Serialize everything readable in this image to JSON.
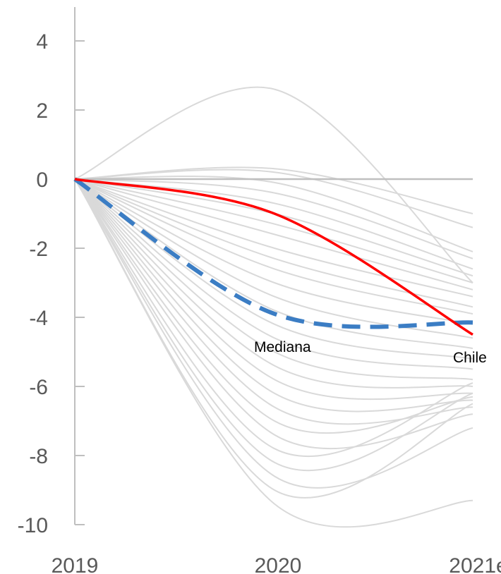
{
  "chart_data": {
    "type": "line",
    "title": "",
    "xlabel": "",
    "ylabel": "",
    "categories": [
      "2019",
      "2020",
      "2021e"
    ],
    "ylim": [
      -10,
      4
    ],
    "yticks": [
      4,
      2,
      0,
      -2,
      -4,
      -6,
      -8,
      -10
    ],
    "grid": false,
    "legend": "none",
    "colors": {
      "background_series": "#d9d9d9",
      "zero_line": "#bfbfbf",
      "axis": "#bfbfbf",
      "chile": "#ff0000",
      "mediana": "#3b7dc4"
    },
    "background_series": [
      [
        0,
        2.6,
        -3.0
      ],
      [
        0,
        0.3,
        -1.0
      ],
      [
        0,
        0.2,
        -1.4
      ],
      [
        0,
        -0.1,
        -2.1
      ],
      [
        0,
        -0.4,
        -2.3
      ],
      [
        0,
        -0.7,
        -2.6
      ],
      [
        0,
        -1.0,
        -2.8
      ],
      [
        0,
        -1.3,
        -3.0
      ],
      [
        0,
        -1.6,
        -3.2
      ],
      [
        0,
        -2.0,
        -3.4
      ],
      [
        0,
        -2.3,
        -3.7
      ],
      [
        0,
        -2.6,
        -3.9
      ],
      [
        0,
        -3.0,
        -4.2
      ],
      [
        0,
        -3.4,
        -4.6
      ],
      [
        0,
        -3.8,
        -4.9
      ],
      [
        0,
        -4.2,
        -5.2
      ],
      [
        0,
        -4.6,
        -5.5
      ],
      [
        0,
        -5.0,
        -5.8
      ],
      [
        0,
        -5.4,
        -6.0
      ],
      [
        0,
        -5.8,
        -6.2
      ],
      [
        0,
        -6.2,
        -6.4
      ],
      [
        0,
        -6.6,
        -6.6
      ],
      [
        0,
        -7.0,
        -6.3
      ],
      [
        0,
        -7.4,
        -6.8
      ],
      [
        0,
        -7.8,
        -5.9
      ],
      [
        0,
        -8.2,
        -6.2
      ],
      [
        0,
        -8.6,
        -7.2
      ],
      [
        0,
        -9.0,
        -6.5
      ],
      [
        0,
        -9.4,
        -9.3
      ]
    ],
    "series": [
      {
        "name": "Mediana",
        "values": [
          0,
          -3.9,
          -4.15
        ],
        "style": "dashed"
      },
      {
        "name": "Chile",
        "values": [
          0,
          -1.0,
          -4.5
        ],
        "style": "solid"
      }
    ]
  }
}
